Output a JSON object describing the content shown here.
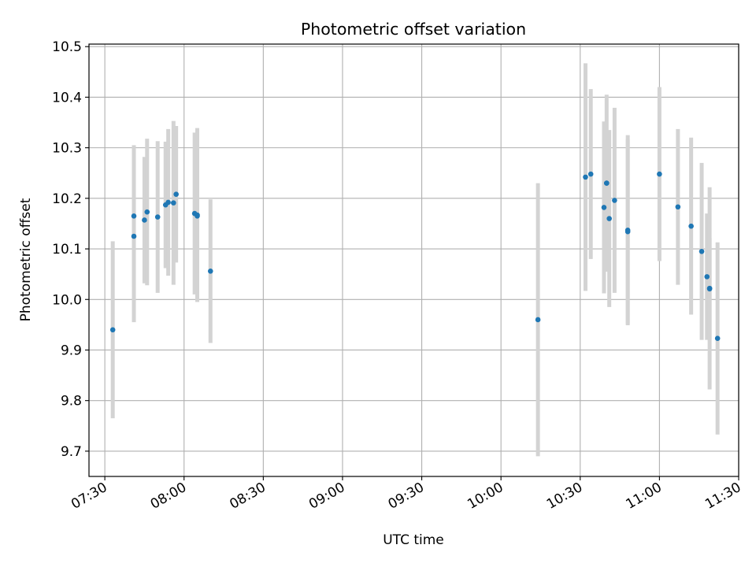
{
  "chart_data": {
    "type": "scatter",
    "title": "Photometric offset variation",
    "xlabel": "UTC time",
    "ylabel": "Photometric offset",
    "xlim": [
      "07:24",
      "11:30"
    ],
    "ylim": [
      9.65,
      10.505
    ],
    "x_ticks": [
      "07:30",
      "08:00",
      "08:30",
      "09:00",
      "09:30",
      "10:00",
      "10:30",
      "11:00",
      "11:30"
    ],
    "y_ticks": [
      "9.7",
      "9.8",
      "9.9",
      "10.0",
      "10.1",
      "10.2",
      "10.3",
      "10.4",
      "10.5"
    ],
    "grid": true,
    "colors": {
      "point": "#1f77b4",
      "errorbar": "#d3d3d3",
      "grid": "#b0b0b0"
    },
    "points": [
      {
        "time": "07:33",
        "value": 9.94,
        "error": 0.175
      },
      {
        "time": "07:41",
        "value": 10.165,
        "error": 0.14
      },
      {
        "time": "07:41",
        "value": 10.125,
        "error": 0.17
      },
      {
        "time": "07:45",
        "value": 10.157,
        "error": 0.125
      },
      {
        "time": "07:46",
        "value": 10.173,
        "error": 0.145
      },
      {
        "time": "07:50",
        "value": 10.163,
        "error": 0.15
      },
      {
        "time": "07:53",
        "value": 10.187,
        "error": 0.125
      },
      {
        "time": "07:54",
        "value": 10.192,
        "error": 0.145
      },
      {
        "time": "07:56",
        "value": 10.191,
        "error": 0.162
      },
      {
        "time": "07:57",
        "value": 10.208,
        "error": 0.135
      },
      {
        "time": "08:04",
        "value": 10.17,
        "error": 0.16
      },
      {
        "time": "08:05",
        "value": 10.165,
        "error": 0.165
      },
      {
        "time": "08:05",
        "value": 10.167,
        "error": 0.172
      },
      {
        "time": "08:10",
        "value": 10.056,
        "error": 0.142
      },
      {
        "time": "10:14",
        "value": 9.96,
        "error": 0.27
      },
      {
        "time": "10:32",
        "value": 10.242,
        "error": 0.225
      },
      {
        "time": "10:34",
        "value": 10.248,
        "error": 0.168
      },
      {
        "time": "10:39",
        "value": 10.182,
        "error": 0.17
      },
      {
        "time": "10:40",
        "value": 10.23,
        "error": 0.175
      },
      {
        "time": "10:40",
        "value": 10.23,
        "error": 0.105
      },
      {
        "time": "10:41",
        "value": 10.16,
        "error": 0.175
      },
      {
        "time": "10:43",
        "value": 10.196,
        "error": 0.183
      },
      {
        "time": "10:48",
        "value": 10.137,
        "error": 0.188
      },
      {
        "time": "10:48",
        "value": 10.134,
        "error": 0.182
      },
      {
        "time": "11:00",
        "value": 10.248,
        "error": 0.172
      },
      {
        "time": "11:07",
        "value": 10.183,
        "error": 0.154
      },
      {
        "time": "11:12",
        "value": 10.145,
        "error": 0.175
      },
      {
        "time": "11:16",
        "value": 10.095,
        "error": 0.175
      },
      {
        "time": "11:18",
        "value": 10.045,
        "error": 0.125
      },
      {
        "time": "11:19",
        "value": 10.022,
        "error": 0.2
      },
      {
        "time": "11:19",
        "value": 10.021,
        "error": 0.1
      },
      {
        "time": "11:22",
        "value": 9.923,
        "error": 0.19
      }
    ]
  }
}
